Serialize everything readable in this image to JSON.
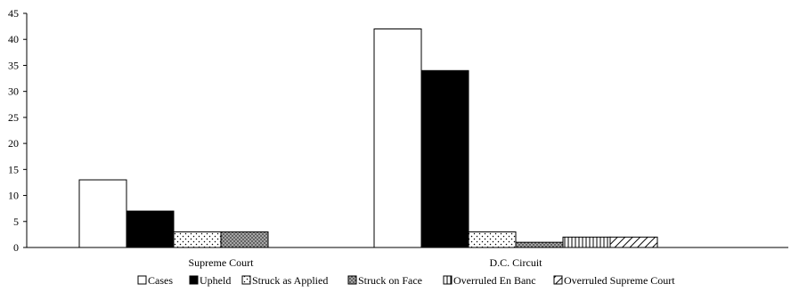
{
  "chart_data": {
    "type": "bar",
    "title": "",
    "xlabel": "",
    "ylabel": "",
    "categories": [
      "Supreme Court",
      "D.C. Circuit"
    ],
    "ylim": [
      0,
      45
    ],
    "yticks": [
      0,
      5,
      10,
      15,
      20,
      25,
      30,
      35,
      40,
      45
    ],
    "grid": false,
    "legend_position": "bottom",
    "series": [
      {
        "name": "Cases",
        "values": [
          13,
          42
        ],
        "fill": "white"
      },
      {
        "name": "Upheld",
        "values": [
          7,
          34
        ],
        "fill": "black"
      },
      {
        "name": "Struck as Applied",
        "values": [
          3,
          3
        ],
        "fill": "dots"
      },
      {
        "name": "Struck on Face",
        "values": [
          3,
          1
        ],
        "fill": "dense-dots"
      },
      {
        "name": "Overruled En Banc",
        "values": [
          null,
          2
        ],
        "fill": "vertical-lines"
      },
      {
        "name": "Overruled Supreme Court",
        "values": [
          null,
          2
        ],
        "fill": "diagonal-lines"
      }
    ]
  }
}
